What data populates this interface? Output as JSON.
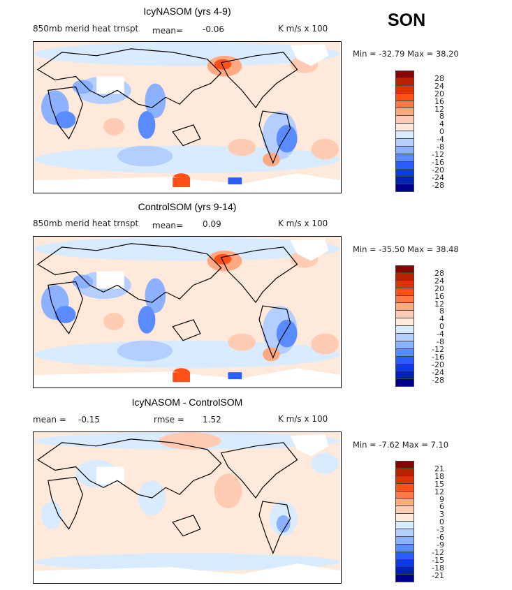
{
  "season": "SON",
  "panels": [
    {
      "title": "IcyNASOM (yrs 4-9)",
      "field": "850mb merid heat trnspt",
      "mean_label": "mean=",
      "mean": "-0.06",
      "units": "K m/s x 100",
      "min_label": "Min =",
      "min": "-32.79",
      "max_label": "Max =",
      "max": "38.20",
      "colorbar": {
        "levels": [
          "28",
          "24",
          "20",
          "16",
          "12",
          "8",
          "4",
          "0",
          "-4",
          "-8",
          "-12",
          "-16",
          "-20",
          "-24",
          "-28"
        ]
      }
    },
    {
      "title": "ControlSOM (yrs 9-14)",
      "field": "850mb merid heat trnspt",
      "mean_label": "mean=",
      "mean": "0.09",
      "units": "K m/s x 100",
      "min_label": "Min =",
      "min": "-35.50",
      "max_label": "Max =",
      "max": "38.48",
      "colorbar": {
        "levels": [
          "28",
          "24",
          "20",
          "16",
          "12",
          "8",
          "4",
          "0",
          "-4",
          "-8",
          "-12",
          "-16",
          "-20",
          "-24",
          "-28"
        ]
      }
    },
    {
      "title": "IcyNASOM - ControlSOM",
      "mean_label": "mean =",
      "mean": "-0.15",
      "rmse_label": "rmse =",
      "rmse": "1.52",
      "units": "K m/s x 100",
      "min_label": "Min =",
      "min": "-7.62",
      "max_label": "Max =",
      "max": "7.10",
      "colorbar": {
        "levels": [
          "21",
          "18",
          "15",
          "12",
          "9",
          "6",
          "3",
          "0",
          "-3",
          "-6",
          "-9",
          "-12",
          "-15",
          "-18",
          "-21"
        ]
      }
    }
  ],
  "colors": [
    "#8b0000",
    "#b82200",
    "#e03400",
    "#ff5018",
    "#ff7a44",
    "#ffa983",
    "#ffcbb2",
    "#ffe9da",
    "#d9ebff",
    "#b4ceff",
    "#8cb1ff",
    "#5a8bff",
    "#2a5eff",
    "#0a3be2",
    "#0024b0",
    "#000090"
  ]
}
